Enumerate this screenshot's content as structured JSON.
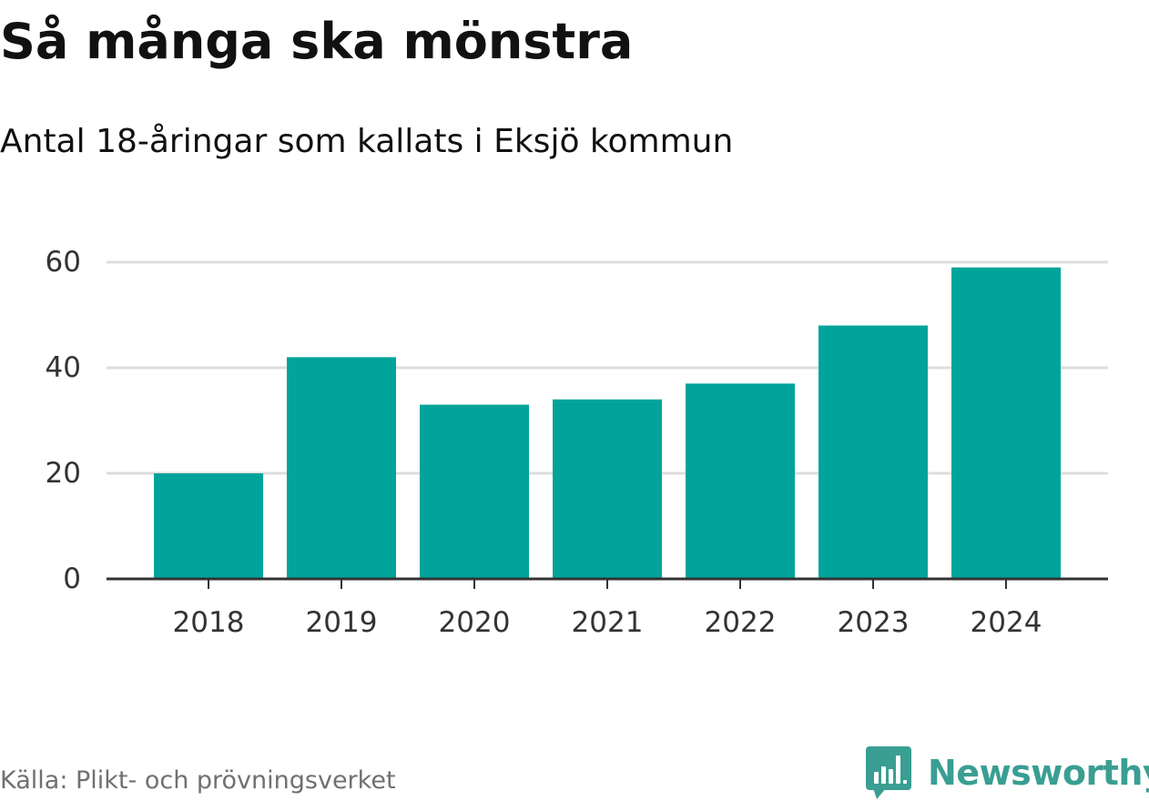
{
  "chart_data": {
    "type": "bar",
    "title": "Så många ska mönstra",
    "subtitle": "Antal 18-åringar som kallats i Eksjö kommun",
    "categories": [
      "2018",
      "2019",
      "2020",
      "2021",
      "2022",
      "2023",
      "2024"
    ],
    "values": [
      20,
      42,
      33,
      34,
      37,
      48,
      59
    ],
    "ylim": [
      0,
      60
    ],
    "yticks": [
      0,
      20,
      40,
      60
    ],
    "grid": true,
    "bar_color": "#00a49a",
    "grid_color": "#dddddd",
    "axis_color": "#333333"
  },
  "footer": {
    "source": "Källa: Plikt- och prövningsverket",
    "brand_name": "Newsworthy",
    "brand_color": "#3a9e93",
    "brand_icon": "newsworthy-logo-icon"
  }
}
